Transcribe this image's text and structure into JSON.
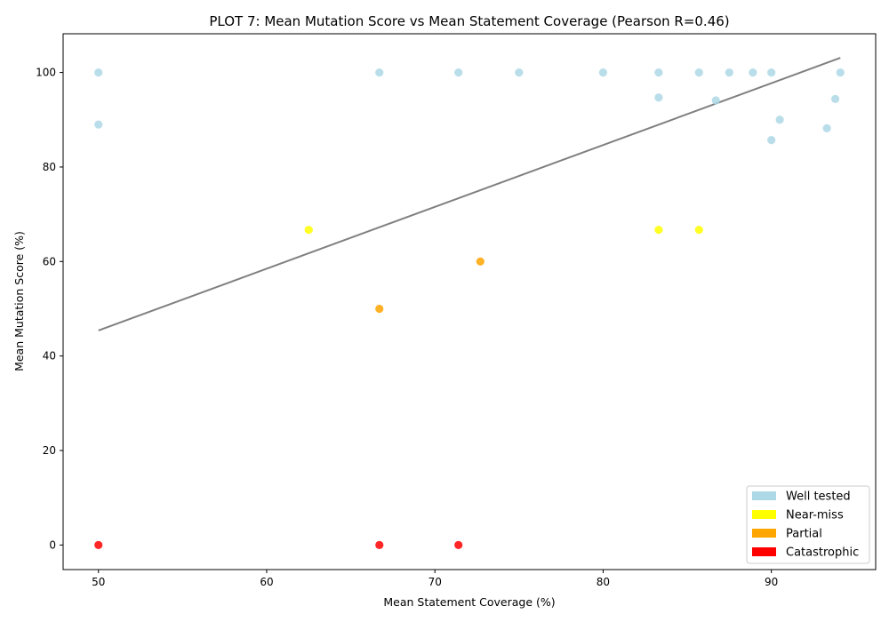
{
  "chart_data": {
    "type": "scatter",
    "title": "PLOT 7: Mean Mutation Score vs Mean Statement Coverage (Pearson R=0.46)",
    "xlabel": "Mean Statement Coverage (%)",
    "ylabel": "Mean Mutation Score (%)",
    "xlim": [
      47.9,
      96.2
    ],
    "ylim": [
      -5.2,
      108.2
    ],
    "x_ticks": [
      "50",
      "60",
      "70",
      "80",
      "90"
    ],
    "y_ticks": [
      "0",
      "20",
      "40",
      "60",
      "80",
      "100"
    ],
    "x_tick_values": [
      50,
      60,
      70,
      80,
      90
    ],
    "y_tick_values": [
      0,
      20,
      40,
      60,
      80,
      100
    ],
    "grid": false,
    "legend_position": "bottom-right",
    "trendline": {
      "x": [
        50,
        94.1
      ],
      "y": [
        45.4,
        103.1
      ],
      "color": "#808080"
    },
    "series": [
      {
        "name": "Well tested",
        "color": "#add8e6",
        "points": [
          [
            50,
            100
          ],
          [
            50,
            89
          ],
          [
            66.7,
            100
          ],
          [
            71.4,
            100
          ],
          [
            75,
            100
          ],
          [
            80,
            100
          ],
          [
            83.3,
            100
          ],
          [
            83.3,
            94.7
          ],
          [
            85.7,
            100
          ],
          [
            86.7,
            94.1
          ],
          [
            87.5,
            100
          ],
          [
            88.9,
            100
          ],
          [
            90,
            100
          ],
          [
            90,
            85.7
          ],
          [
            90.5,
            90
          ],
          [
            93.3,
            88.2
          ],
          [
            93.8,
            94.4
          ],
          [
            94.1,
            100
          ]
        ]
      },
      {
        "name": "Near-miss",
        "color": "#ffff00",
        "points": [
          [
            62.5,
            66.7
          ],
          [
            83.3,
            66.7
          ],
          [
            85.7,
            66.7
          ]
        ]
      },
      {
        "name": "Partial",
        "color": "#ffa500",
        "points": [
          [
            66.7,
            50
          ],
          [
            72.7,
            60
          ]
        ]
      },
      {
        "name": "Catastrophic",
        "color": "#ff0000",
        "points": [
          [
            50,
            0
          ],
          [
            66.7,
            0
          ],
          [
            71.4,
            0
          ]
        ]
      }
    ]
  }
}
